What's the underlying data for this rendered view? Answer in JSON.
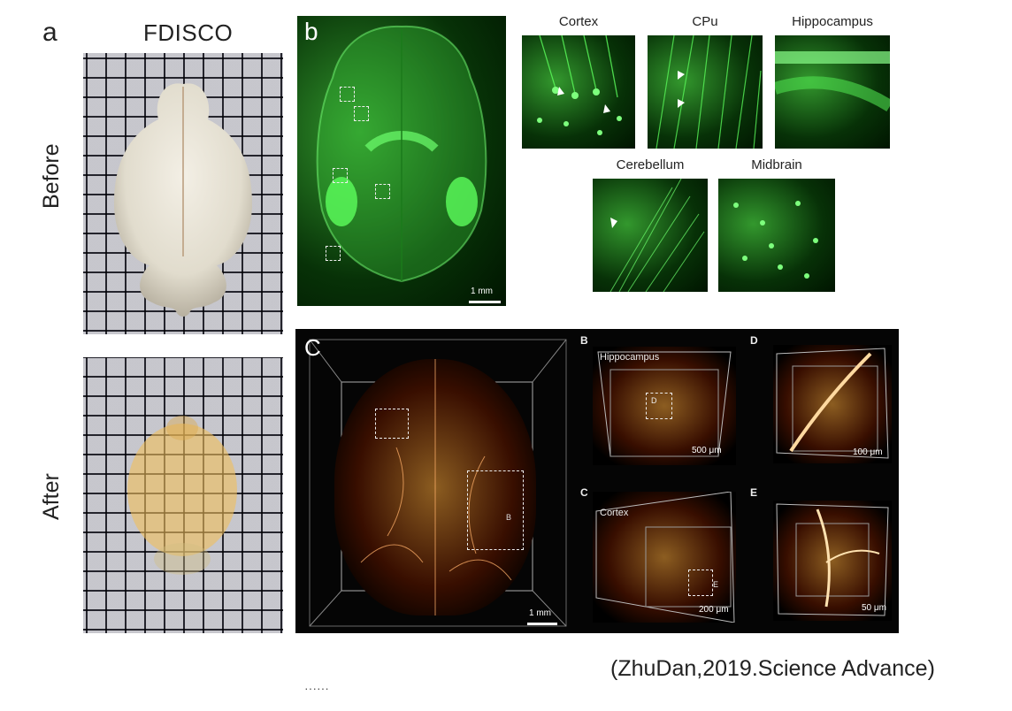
{
  "panel_a": {
    "letter": "a",
    "title": "FDISCO",
    "before_label": "Before",
    "after_label": "After"
  },
  "panel_b": {
    "letter": "b",
    "scale": "1 mm",
    "regions": [
      "Cortex",
      "CPu",
      "Hippocampus",
      "Cerebellum",
      "Midbrain"
    ]
  },
  "panel_c": {
    "letter": "C",
    "box_b_label": "B",
    "scale": "1 mm",
    "sub_B": {
      "letter": "B",
      "label": "Hippocampus",
      "box_label": "D",
      "scale": "500 μm"
    },
    "sub_C": {
      "letter": "C",
      "label": "Cortex",
      "box_label": "E",
      "scale": "200 μm"
    },
    "sub_D": {
      "letter": "D",
      "scale": "100 μm"
    },
    "sub_E": {
      "letter": "E",
      "scale": "50 μm"
    }
  },
  "citation": "(ZhuDan,2019.Science Advance)",
  "footer_fragment": "······",
  "colors": {
    "fluorescence_green": "#2fd42f",
    "vessel_orange": "#e07a28",
    "background_dark": "#050505"
  }
}
